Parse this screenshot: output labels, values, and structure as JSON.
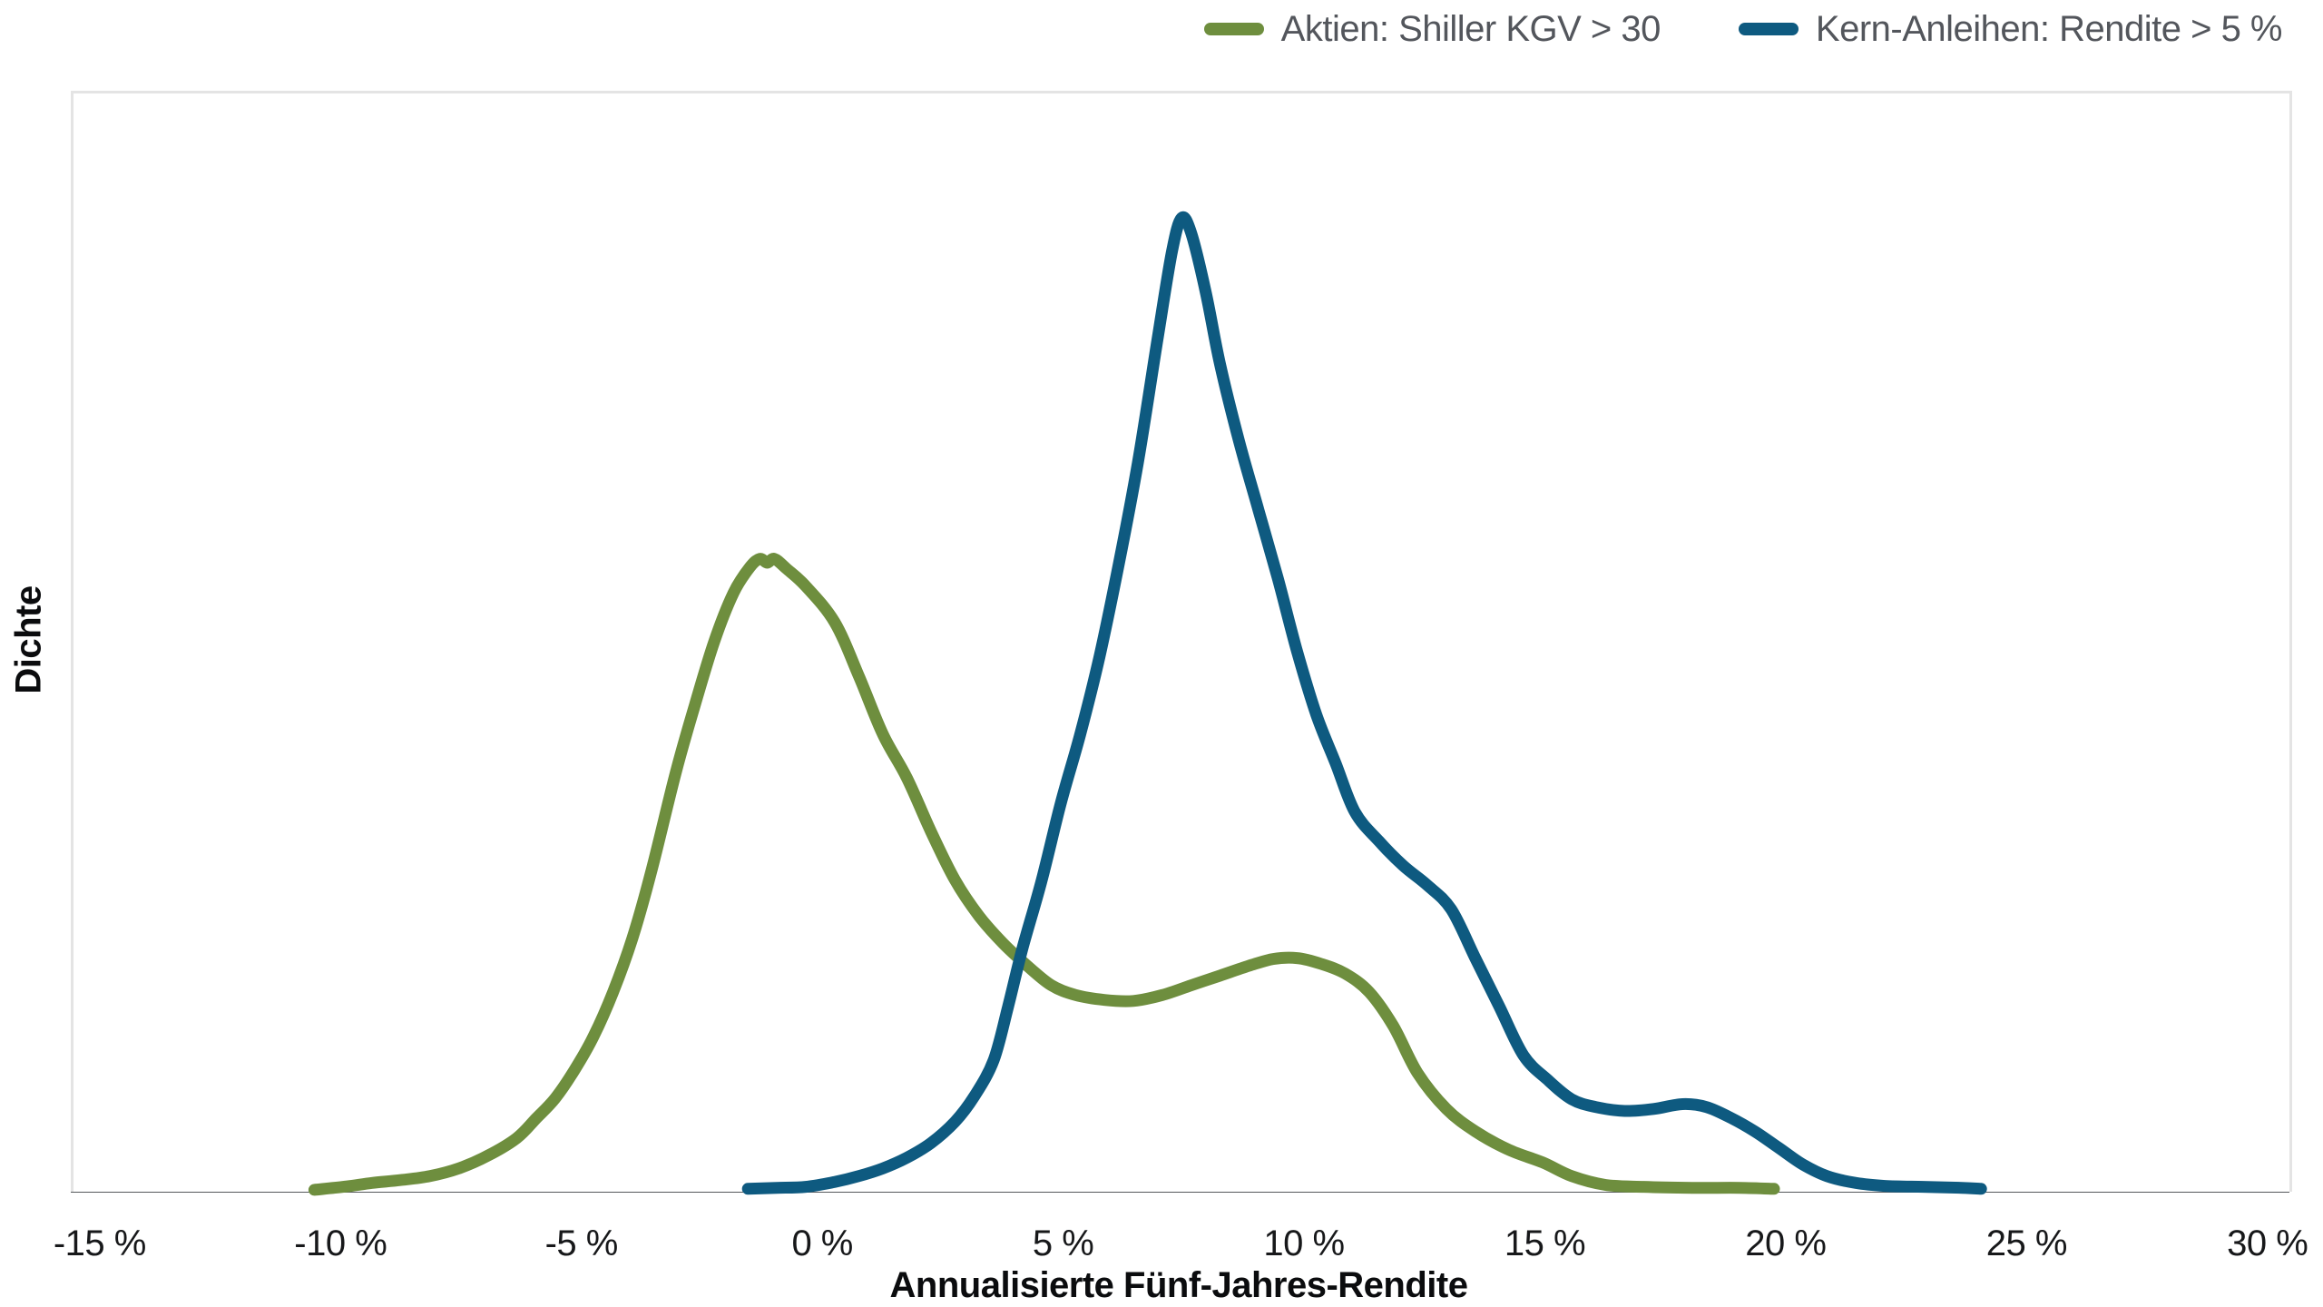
{
  "chart_data": {
    "type": "line",
    "title": "",
    "xlabel": "Annualisierte Fünf-Jahres-Rendite",
    "ylabel": "Dichte",
    "x_unit": "%",
    "xlim": [
      -15,
      30
    ],
    "xlim_render": [
      -15.6,
      30.4
    ],
    "ylim": [
      0,
      1.128
    ],
    "grid": false,
    "legend_position": "top-right",
    "x_ticks": [
      -15,
      -10,
      -5,
      0,
      5,
      10,
      15,
      20,
      25,
      30
    ],
    "x_tick_labels": [
      "-15 %",
      "-10 %",
      "-5 %",
      "0 %",
      "5 %",
      "10 %",
      "15 %",
      "20 %",
      "25 %",
      "30 %"
    ],
    "axis_line_color": "#54575B",
    "plot_border_color": "#E4E4E4",
    "series": [
      {
        "name": "Aktien: Shiller KGV > 30",
        "color": "#6E8E3E",
        "stroke_width": 13,
        "points": [
          [
            -10.6,
            0.002
          ],
          [
            -10.0,
            0.005
          ],
          [
            -9.4,
            0.009
          ],
          [
            -8.8,
            0.012
          ],
          [
            -8.2,
            0.016
          ],
          [
            -7.6,
            0.024
          ],
          [
            -7.0,
            0.037
          ],
          [
            -6.4,
            0.055
          ],
          [
            -6.0,
            0.075
          ],
          [
            -5.6,
            0.096
          ],
          [
            -5.2,
            0.125
          ],
          [
            -4.8,
            0.16
          ],
          [
            -4.4,
            0.205
          ],
          [
            -4.0,
            0.26
          ],
          [
            -3.6,
            0.33
          ],
          [
            -3.1,
            0.43
          ],
          [
            -2.7,
            0.5
          ],
          [
            -2.3,
            0.565
          ],
          [
            -1.9,
            0.615
          ],
          [
            -1.55,
            0.642
          ],
          [
            -1.35,
            0.65
          ],
          [
            -1.2,
            0.646
          ],
          [
            -1.05,
            0.65
          ],
          [
            -0.8,
            0.64
          ],
          [
            -0.4,
            0.622
          ],
          [
            0.2,
            0.585
          ],
          [
            0.7,
            0.53
          ],
          [
            1.2,
            0.47
          ],
          [
            1.7,
            0.425
          ],
          [
            2.2,
            0.37
          ],
          [
            2.7,
            0.32
          ],
          [
            3.2,
            0.283
          ],
          [
            3.7,
            0.255
          ],
          [
            4.2,
            0.232
          ],
          [
            4.7,
            0.212
          ],
          [
            5.2,
            0.202
          ],
          [
            5.8,
            0.197
          ],
          [
            6.4,
            0.196
          ],
          [
            7.0,
            0.202
          ],
          [
            7.6,
            0.212
          ],
          [
            8.2,
            0.222
          ],
          [
            8.8,
            0.232
          ],
          [
            9.3,
            0.239
          ],
          [
            9.8,
            0.24
          ],
          [
            10.3,
            0.234
          ],
          [
            10.8,
            0.224
          ],
          [
            11.3,
            0.205
          ],
          [
            11.8,
            0.17
          ],
          [
            12.3,
            0.122
          ],
          [
            12.9,
            0.085
          ],
          [
            13.5,
            0.062
          ],
          [
            14.2,
            0.043
          ],
          [
            14.9,
            0.03
          ],
          [
            15.5,
            0.016
          ],
          [
            16.2,
            0.007
          ],
          [
            17.0,
            0.005
          ],
          [
            18.0,
            0.004
          ],
          [
            19.0,
            0.004
          ],
          [
            19.7,
            0.003
          ]
        ]
      },
      {
        "name": "Kern-Anleihen: Rendite > 5 %",
        "color": "#0E5A80",
        "stroke_width": 13,
        "points": [
          [
            -1.6,
            0.003
          ],
          [
            -1.0,
            0.004
          ],
          [
            -0.4,
            0.005
          ],
          [
            0.2,
            0.01
          ],
          [
            0.7,
            0.016
          ],
          [
            1.2,
            0.024
          ],
          [
            1.7,
            0.035
          ],
          [
            2.2,
            0.05
          ],
          [
            2.7,
            0.072
          ],
          [
            3.1,
            0.098
          ],
          [
            3.5,
            0.135
          ],
          [
            3.8,
            0.19
          ],
          [
            4.1,
            0.25
          ],
          [
            4.5,
            0.32
          ],
          [
            4.9,
            0.4
          ],
          [
            5.3,
            0.47
          ],
          [
            5.7,
            0.55
          ],
          [
            6.1,
            0.645
          ],
          [
            6.5,
            0.75
          ],
          [
            6.9,
            0.875
          ],
          [
            7.2,
            0.965
          ],
          [
            7.4,
            1.0
          ],
          [
            7.6,
            0.985
          ],
          [
            7.9,
            0.925
          ],
          [
            8.2,
            0.85
          ],
          [
            8.6,
            0.77
          ],
          [
            9.0,
            0.7
          ],
          [
            9.4,
            0.63
          ],
          [
            9.8,
            0.555
          ],
          [
            10.2,
            0.49
          ],
          [
            10.6,
            0.44
          ],
          [
            11.0,
            0.39
          ],
          [
            11.5,
            0.36
          ],
          [
            12.0,
            0.335
          ],
          [
            12.5,
            0.315
          ],
          [
            13.0,
            0.29
          ],
          [
            13.5,
            0.24
          ],
          [
            14.0,
            0.19
          ],
          [
            14.5,
            0.14
          ],
          [
            15.0,
            0.115
          ],
          [
            15.5,
            0.095
          ],
          [
            16.0,
            0.087
          ],
          [
            16.6,
            0.083
          ],
          [
            17.2,
            0.085
          ],
          [
            17.8,
            0.09
          ],
          [
            18.3,
            0.087
          ],
          [
            18.8,
            0.076
          ],
          [
            19.3,
            0.062
          ],
          [
            19.8,
            0.045
          ],
          [
            20.3,
            0.028
          ],
          [
            20.8,
            0.016
          ],
          [
            21.4,
            0.009
          ],
          [
            22.0,
            0.006
          ],
          [
            22.8,
            0.005
          ],
          [
            23.6,
            0.004
          ],
          [
            24.0,
            0.003
          ]
        ]
      }
    ]
  },
  "legend": {
    "items": [
      {
        "label": "Aktien: Shiller KGV > 30",
        "color": "#6E8E3E"
      },
      {
        "label": "Kern-Anleihen: Rendite > 5 %",
        "color": "#0E5A80"
      }
    ]
  }
}
